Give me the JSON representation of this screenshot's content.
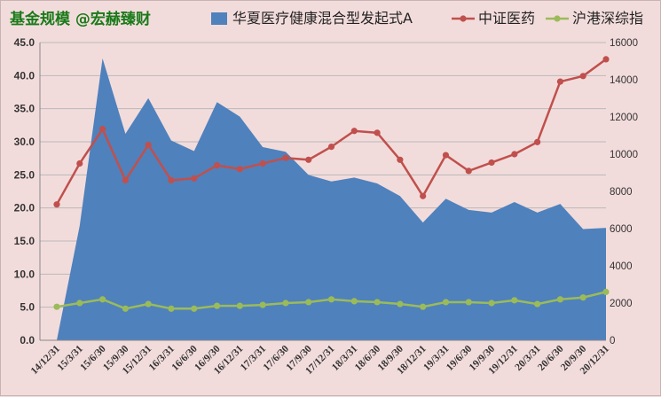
{
  "chart_data": {
    "type": "area+line",
    "title": "基金规模 @宏赫臻财",
    "categories": [
      "14/12/31",
      "15/3/31",
      "15/6/30",
      "15/9/30",
      "15/12/31",
      "16/3/31",
      "16/6/30",
      "16/9/30",
      "16/12/31",
      "17/3/31",
      "17/6/30",
      "17/9/30",
      "17/12/31",
      "18/3/31",
      "18/6/30",
      "18/9/30",
      "18/12/31",
      "19/3/31",
      "19/6/30",
      "19/9/30",
      "19/12/31",
      "20/3/31",
      "20/6/30",
      "20/9/30",
      "20/12/31"
    ],
    "left_axis": {
      "ylim": [
        0,
        45
      ],
      "ticks": [
        "0.0",
        "5.0",
        "10.0",
        "15.0",
        "20.0",
        "25.0",
        "30.0",
        "35.0",
        "40.0",
        "45.0"
      ]
    },
    "right_axis": {
      "ylim": [
        0,
        16000
      ],
      "ticks": [
        "0",
        "2000",
        "4000",
        "6000",
        "8000",
        "10000",
        "12000",
        "14000",
        "16000"
      ]
    },
    "series": [
      {
        "name": "华夏医疗健康混合型发起式A",
        "kind": "area",
        "axis": "left",
        "color": "#4f81bd",
        "values": [
          0,
          17.3,
          42.6,
          31.2,
          36.6,
          30.2,
          28.6,
          36.0,
          33.8,
          29.2,
          28.5,
          25.0,
          24.0,
          24.6,
          23.7,
          21.8,
          17.8,
          21.4,
          19.7,
          19.3,
          20.9,
          19.3,
          20.6,
          16.8,
          17.0
        ]
      },
      {
        "name": "中证医药",
        "kind": "line",
        "axis": "right",
        "color": "#c0504d",
        "values": [
          7300,
          9500,
          11350,
          8600,
          10500,
          8600,
          8700,
          9400,
          9200,
          9500,
          9800,
          9700,
          10400,
          11250,
          11150,
          9700,
          7750,
          9950,
          9100,
          9550,
          10000,
          10650,
          13900,
          14200,
          15100
        ]
      },
      {
        "name": "沪港深综指",
        "kind": "line",
        "axis": "right",
        "color": "#9bbb59",
        "values": [
          1800,
          2000,
          2200,
          1700,
          1950,
          1700,
          1700,
          1850,
          1850,
          1900,
          2000,
          2050,
          2200,
          2100,
          2050,
          1950,
          1800,
          2050,
          2050,
          2000,
          2150,
          1950,
          2200,
          2300,
          2600
        ]
      }
    ]
  }
}
